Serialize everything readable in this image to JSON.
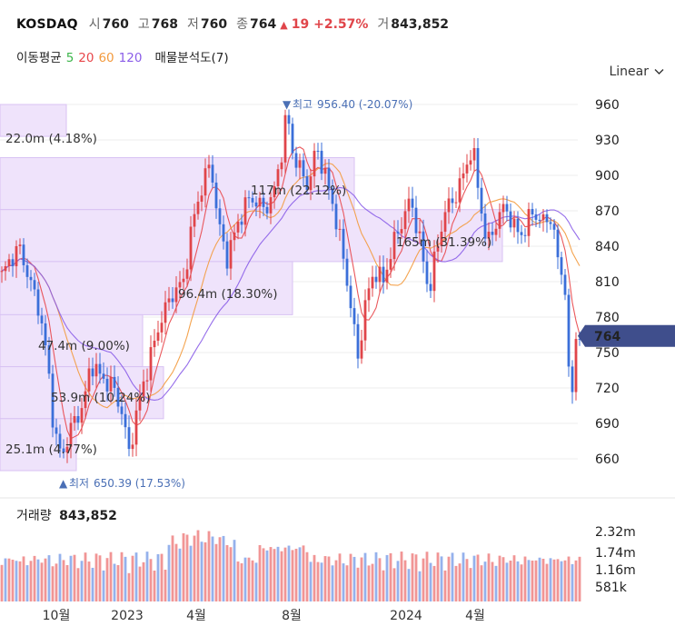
{
  "header": {
    "symbol": "KOSDAQ",
    "open_label": "시",
    "open": "760",
    "high_label": "고",
    "high": "768",
    "low_label": "저",
    "low": "760",
    "close_label": "종",
    "close": "764",
    "change_arrow": "▲",
    "change": "19 +2.57%",
    "volume_label": "거",
    "volume": "843,852"
  },
  "indicators": {
    "ma_label": "이동평균",
    "ma": [
      {
        "label": "5",
        "color": "#3bb54a"
      },
      {
        "label": "20",
        "color": "#e8464a"
      },
      {
        "label": "60",
        "color": "#f39a3d"
      },
      {
        "label": "120",
        "color": "#8a5de8"
      }
    ],
    "volume_profile_label": "매물분석도(7)"
  },
  "scale_button": "Linear",
  "volume_panel": {
    "title": "거래량",
    "value": "843,852"
  },
  "colors": {
    "up": "#e0454a",
    "down": "#3b6fd9",
    "profile": "#efe3fb",
    "profile_border": "#d8c2f3",
    "price_tag": "#3f4e8c"
  },
  "chart_data": {
    "type": "candlestick",
    "ylim": [
      645,
      975
    ],
    "y_ticks": [
      "960",
      "930",
      "900",
      "870",
      "840",
      "810",
      "780",
      "750",
      "720",
      "690",
      "660"
    ],
    "x_ticks": [
      "10월",
      "2023",
      "4월",
      "8월",
      "2024",
      "4월"
    ],
    "last_price_tag": "764",
    "high_annotation": {
      "marker": "▼",
      "label": "최고",
      "value": "956.40 (-20.07%)"
    },
    "low_annotation": {
      "marker": "▲",
      "label": "최저",
      "value": "650.39 (17.53%)"
    },
    "volume_profile": [
      {
        "range": [
          933,
          960
        ],
        "label": "22.0m (4.18%)"
      },
      {
        "range": [
          871,
          915
        ],
        "label": "117m (22.12%)"
      },
      {
        "range": [
          827,
          871
        ],
        "label": "165m (31.39%)"
      },
      {
        "range": [
          782,
          827
        ],
        "label": "96.4m (18.30%)"
      },
      {
        "range": [
          738,
          782
        ],
        "label": "47.4m (9.00%)"
      },
      {
        "range": [
          694,
          738
        ],
        "label": "53.9m (10.24%)"
      },
      {
        "range": [
          650,
          694
        ],
        "label": "25.1m (4.77%)"
      }
    ],
    "volume_ticks": [
      "2.32m",
      "1.74m",
      "1.16m",
      "581k"
    ],
    "series": [
      {
        "name": "5",
        "color": "#3bb54a"
      },
      {
        "name": "20",
        "color": "#e8464a"
      },
      {
        "name": "60",
        "color": "#f39a3d"
      },
      {
        "name": "120",
        "color": "#8a5de8"
      }
    ]
  }
}
